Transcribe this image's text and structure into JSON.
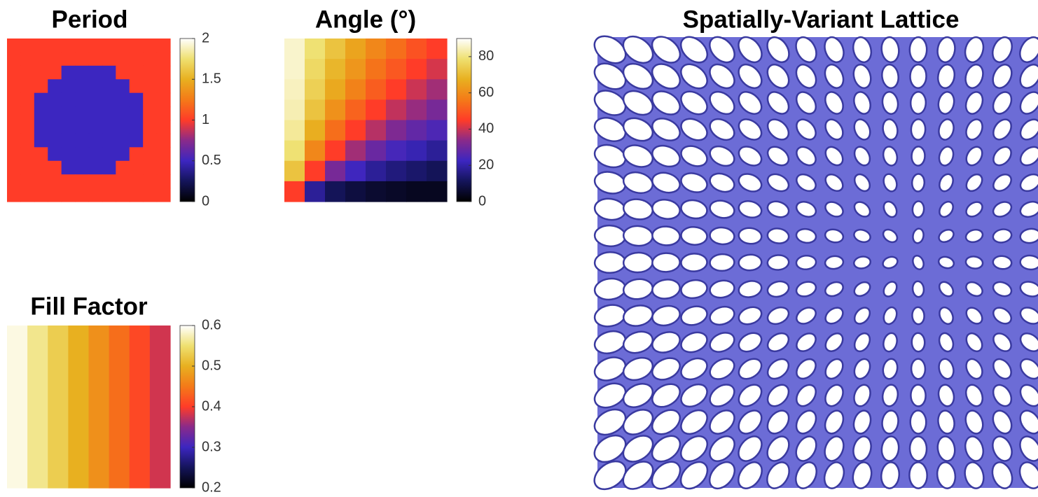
{
  "chart_data": [
    {
      "type": "heatmap",
      "title": "Period",
      "colormap": [
        "#000000",
        "#14145a",
        "#3c26c0",
        "#8a2a8a",
        "#ff3c28",
        "#f47a18",
        "#e8b020",
        "#efe070",
        "#ffffff"
      ],
      "ylim": [
        0,
        2
      ],
      "yticks": [
        0,
        0.5,
        1,
        1.5,
        2
      ],
      "values": [
        [
          1,
          1,
          1,
          1,
          1,
          1,
          1,
          1,
          1,
          1,
          1,
          1
        ],
        [
          1,
          1,
          1,
          1,
          1,
          1,
          1,
          1,
          1,
          1,
          1,
          1
        ],
        [
          1,
          1,
          1,
          1,
          0.5,
          0.5,
          0.5,
          0.5,
          1,
          1,
          1,
          1
        ],
        [
          1,
          1,
          1,
          0.5,
          0.5,
          0.5,
          0.5,
          0.5,
          0.5,
          1,
          1,
          1
        ],
        [
          1,
          1,
          0.5,
          0.5,
          0.5,
          0.5,
          0.5,
          0.5,
          0.5,
          0.5,
          1,
          1
        ],
        [
          1,
          1,
          0.5,
          0.5,
          0.5,
          0.5,
          0.5,
          0.5,
          0.5,
          0.5,
          1,
          1
        ],
        [
          1,
          1,
          0.5,
          0.5,
          0.5,
          0.5,
          0.5,
          0.5,
          0.5,
          0.5,
          1,
          1
        ],
        [
          1,
          1,
          0.5,
          0.5,
          0.5,
          0.5,
          0.5,
          0.5,
          0.5,
          0.5,
          1,
          1
        ],
        [
          1,
          1,
          1,
          0.5,
          0.5,
          0.5,
          0.5,
          0.5,
          0.5,
          1,
          1,
          1
        ],
        [
          1,
          1,
          1,
          1,
          0.5,
          0.5,
          0.5,
          0.5,
          1,
          1,
          1,
          1
        ],
        [
          1,
          1,
          1,
          1,
          1,
          1,
          1,
          1,
          1,
          1,
          1,
          1
        ],
        [
          1,
          1,
          1,
          1,
          1,
          1,
          1,
          1,
          1,
          1,
          1,
          1
        ]
      ]
    },
    {
      "type": "heatmap",
      "title": "Angle (°)",
      "colormap": [
        "#000000",
        "#14145a",
        "#3c26c0",
        "#8a2a8a",
        "#ff3c28",
        "#f47a18",
        "#e8b020",
        "#efe070",
        "#ffffff"
      ],
      "ylim": [
        0,
        90
      ],
      "yticks": [
        0,
        20,
        40,
        60,
        80
      ],
      "values": [
        [
          86,
          79,
          72,
          65,
          59,
          54,
          49,
          45
        ],
        [
          86,
          77,
          69,
          62,
          55,
          50,
          45,
          41
        ],
        [
          85,
          75,
          66,
          58,
          51,
          45,
          40,
          36
        ],
        [
          84,
          72,
          61,
          52,
          45,
          39,
          35,
          31
        ],
        [
          82,
          67,
          54,
          45,
          38,
          32,
          28,
          25
        ],
        [
          79,
          59,
          45,
          36,
          29,
          24,
          21,
          18
        ],
        [
          72,
          45,
          31,
          23,
          18,
          15,
          13,
          11
        ],
        [
          45,
          18,
          11,
          8,
          6,
          5,
          4,
          4
        ]
      ]
    },
    {
      "type": "heatmap",
      "title": "Fill Factor",
      "colormap": [
        "#000000",
        "#14145a",
        "#3c26c0",
        "#8a2a8a",
        "#ff3c28",
        "#f47a18",
        "#e8b020",
        "#efe070",
        "#ffffff"
      ],
      "ylim": [
        0.2,
        0.6
      ],
      "yticks": [
        0.2,
        0.3,
        0.4,
        0.5,
        0.6
      ],
      "values": [
        [
          0.59,
          0.56,
          0.53,
          0.5,
          0.47,
          0.44,
          0.41,
          0.38
        ]
      ]
    },
    {
      "type": "image",
      "title": "Spatially-Variant Lattice"
    }
  ]
}
